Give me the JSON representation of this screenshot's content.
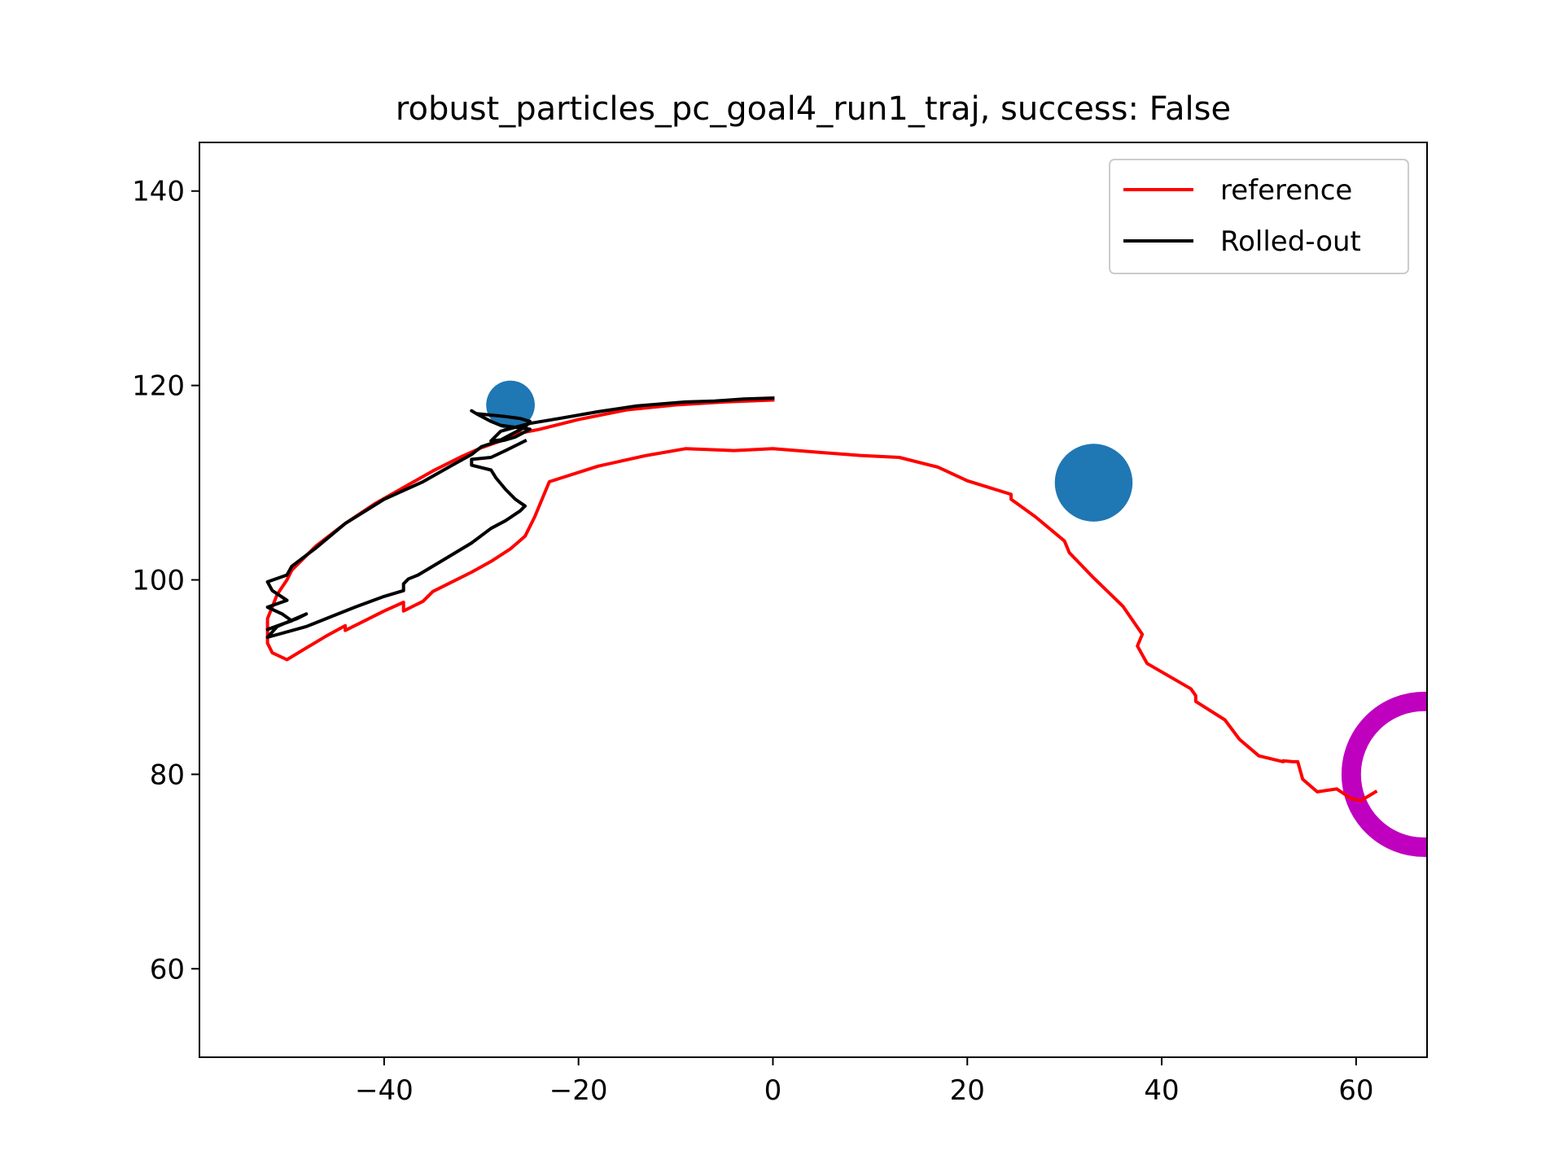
{
  "chart_data": {
    "type": "line",
    "title": "robust_particles_pc_goal4_run1_traj, success: False",
    "xlabel": "",
    "ylabel": "",
    "xlim": [
      -59,
      67.3
    ],
    "ylim": [
      50.9,
      145
    ],
    "xticks": [
      -40,
      -20,
      0,
      20,
      40,
      60
    ],
    "xtick_labels": [
      "−40",
      "−20",
      "0",
      "20",
      "40",
      "60"
    ],
    "yticks": [
      60,
      80,
      100,
      120,
      140
    ],
    "ytick_labels": [
      "60",
      "80",
      "100",
      "120",
      "140"
    ],
    "grid": false,
    "legend_position": "top-right",
    "series": [
      {
        "name": "reference",
        "color": "#ff0000",
        "x": [
          0,
          -5,
          -10,
          -15,
          -20,
          -24,
          -26.5,
          -27,
          -28,
          -30,
          -32,
          -35,
          -38,
          -41,
          -44,
          -47,
          -49.5,
          -50,
          -51,
          -52,
          -52,
          -51.5,
          -50,
          -48,
          -46,
          -44,
          -44,
          -42,
          -40,
          -38,
          -38,
          -36,
          -35,
          -33,
          -31,
          -29,
          -27,
          -25.5,
          -24.5,
          -23,
          -18,
          -13,
          -9,
          -4,
          0,
          5,
          9,
          13,
          17,
          20,
          24.5,
          24.5,
          27,
          30,
          30.5,
          33,
          36,
          38,
          37.5,
          38.5,
          43,
          43.5,
          43.5,
          46.5,
          48,
          50,
          52.5,
          52.5,
          53.5,
          54,
          54.5,
          56,
          58,
          59.5,
          60.5,
          62
        ],
        "y": [
          118.5,
          118.3,
          118,
          117.5,
          116.5,
          115.5,
          115,
          114.7,
          114.3,
          113.6,
          112.7,
          111.2,
          109.5,
          107.8,
          105.8,
          103.5,
          101,
          100,
          98.5,
          96,
          93.5,
          92.5,
          91.8,
          93,
          94.2,
          95.3,
          94.8,
          95.8,
          96.8,
          97.7,
          96.8,
          97.8,
          98.8,
          99.8,
          100.8,
          101.9,
          103.2,
          104.5,
          106.5,
          110.1,
          111.7,
          112.8,
          113.5,
          113.3,
          113.5,
          113.1,
          112.8,
          112.6,
          111.6,
          110.2,
          108.8,
          108.3,
          106.5,
          104,
          102.8,
          100.2,
          97.3,
          94.4,
          93.2,
          91.4,
          88.8,
          88.1,
          87.5,
          85.6,
          83.6,
          81.9,
          81.3,
          81.4,
          81.3,
          81.3,
          79.5,
          78.2,
          78.5,
          77.5,
          77.3,
          78.2
        ]
      },
      {
        "name": "Rolled-out",
        "color": "#000000",
        "x": [
          0,
          -3,
          -6,
          -9,
          -14,
          -18,
          -22,
          -25,
          -28,
          -29,
          -28,
          -26.5,
          -25.5,
          -25,
          -26,
          -27.5,
          -30.5,
          -31,
          -30.5,
          -29,
          -28,
          -25,
          -26.5,
          -27.5,
          -28.5,
          -30,
          -31,
          -33,
          -36,
          -40,
          -44,
          -47,
          -49.5,
          -50,
          -52,
          -51.5,
          -50,
          -52,
          -50.5,
          -49.5,
          -52,
          -49,
          -48,
          -51,
          -52,
          -48,
          -45.5,
          -43,
          -40,
          -38,
          -38,
          -37.5,
          -36.5,
          -34,
          -31,
          -29,
          -27.5,
          -26,
          -25.5,
          -26.5,
          -27.5,
          -28.5,
          -29,
          -31,
          -31,
          -29,
          -27.5,
          -25.5
        ],
        "y": [
          118.7,
          118.6,
          118.4,
          118.3,
          117.9,
          117.3,
          116.6,
          116.1,
          115.3,
          114.3,
          114.4,
          115.2,
          115.7,
          116.3,
          116.6,
          116.8,
          117.1,
          117.4,
          117.1,
          116.3,
          115.9,
          115.5,
          114.7,
          114.4,
          114.2,
          113.7,
          112.9,
          111.8,
          110.1,
          108.3,
          105.8,
          103.3,
          101.4,
          100.5,
          99.8,
          98.9,
          97.9,
          97.2,
          96.5,
          95.8,
          94.9,
          96,
          96.5,
          95.2,
          94.1,
          95.2,
          96.2,
          97.2,
          98.3,
          98.9,
          99.6,
          100.1,
          100.5,
          102,
          103.8,
          105.3,
          106.1,
          107.1,
          107.6,
          108.3,
          109.3,
          110.5,
          111.3,
          111.8,
          112.4,
          112.6,
          113.3,
          114.3
        ]
      }
    ],
    "obstacles": [
      {
        "x": -27,
        "y": 118,
        "radius": 2.5,
        "color": "#1f77b4"
      },
      {
        "x": 33,
        "y": 110,
        "radius": 4,
        "color": "#1f77b4"
      }
    ],
    "goal": {
      "x": 67,
      "y": 80,
      "radius": 8.5,
      "color": "#bf00bf"
    }
  }
}
